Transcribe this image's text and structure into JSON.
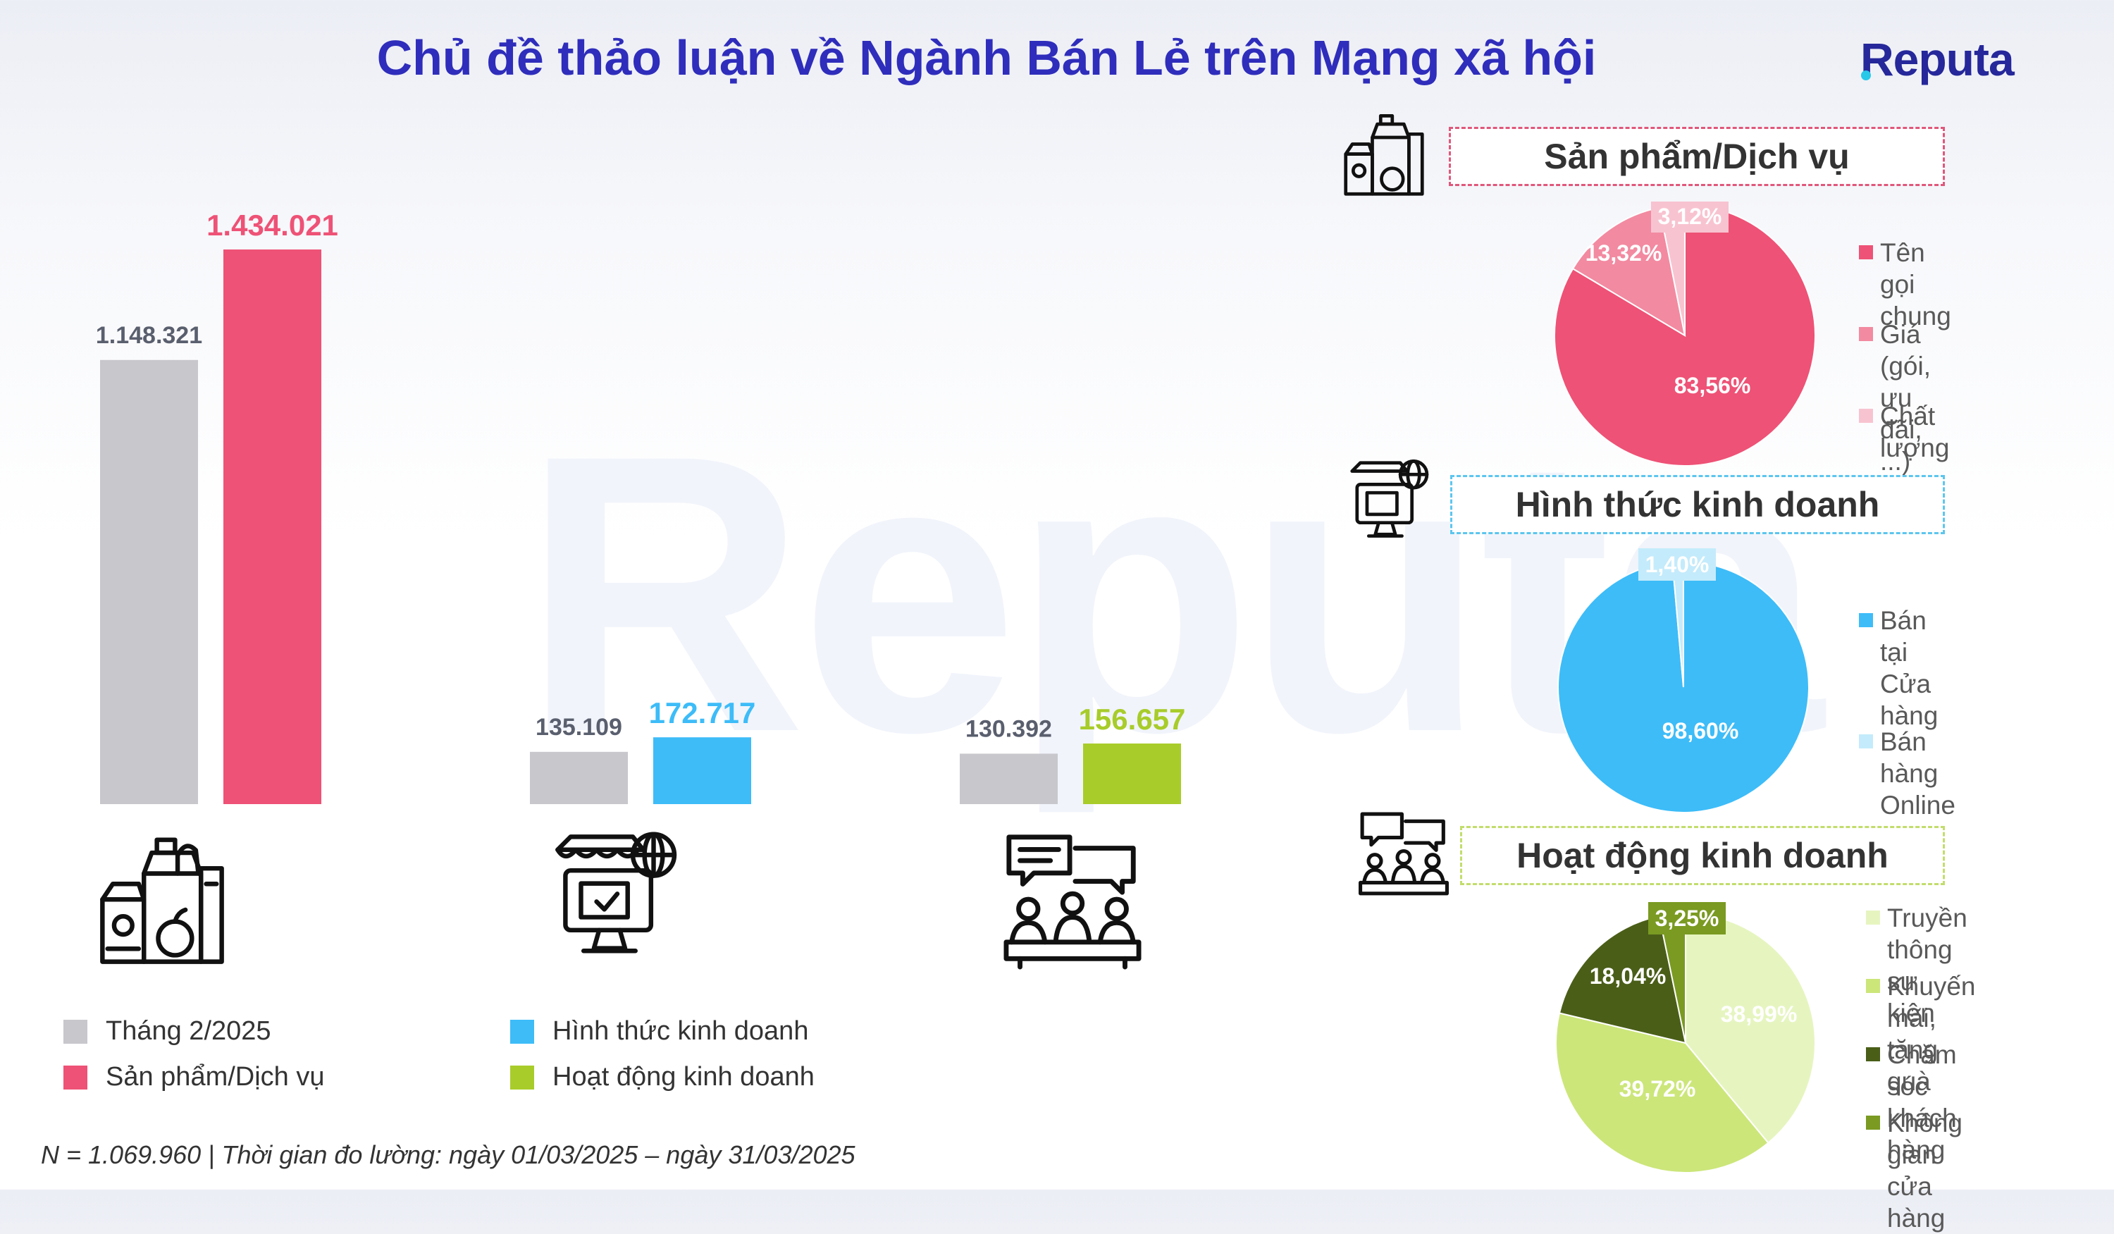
{
  "header": {
    "title": "Chủ đề thảo luận về Ngành Bán Lẻ trên Mạng xã hội",
    "brand": "Reputa",
    "watermark": "Reputa"
  },
  "footnote": "N = 1.069.960 | Thời gian đo lường: ngày 01/03/2025 – ngày 31/03/2025",
  "legend": [
    {
      "label": "Tháng 2/2025",
      "color": "#c7c7cc"
    },
    {
      "label": "Sản phẩm/Dịch vụ",
      "color": "#ee5276"
    },
    {
      "label": "Hình thức kinh doanh",
      "color": "#3dbcf8"
    },
    {
      "label": "Hoạt động kinh doanh",
      "color": "#a8cc2a"
    }
  ],
  "chart_data": [
    {
      "type": "bar",
      "categories": [
        "Sản phẩm/Dịch vụ",
        "Hình thức kinh doanh",
        "Hoạt động kinh doanh"
      ],
      "series": [
        {
          "name": "Tháng 2/2025",
          "values": [
            1148321,
            135109,
            130392
          ],
          "labels": [
            "1.148.321",
            "135.109",
            "130.392"
          ],
          "color": "#c7c7cc"
        },
        {
          "values": [
            1434021,
            172717,
            156657
          ],
          "labels": [
            "1.434.021",
            "172.717",
            "156.657"
          ],
          "colors": [
            "#ee5276",
            "#3dbcf8",
            "#a8cc2a"
          ]
        }
      ],
      "category_icons": [
        "grocery-icon",
        "online-store-icon",
        "meeting-icon"
      ],
      "ylim": [
        0,
        1434021
      ],
      "grid": false
    },
    {
      "type": "pie",
      "title": "Sản phẩm/Dịch vụ",
      "icon": "grocery-icon",
      "border_color": "#e0577b",
      "slices": [
        {
          "label": "Tên gọi chung",
          "value": 83.56,
          "value_label": "83,56%",
          "color": "#ee5276"
        },
        {
          "label": "Giá (gói, ưu đãi, ...)",
          "value": 13.32,
          "value_label": "13,32%",
          "color": "#f28aa1"
        },
        {
          "label": "Chất lượng",
          "value": 3.12,
          "value_label": "3,12%",
          "color": "#f8c3d0"
        }
      ]
    },
    {
      "type": "pie",
      "title": "Hình thức kinh doanh",
      "icon": "online-store-icon",
      "border_color": "#5cc6ee",
      "slices": [
        {
          "label": "Bán tại Cửa hàng",
          "value": 98.6,
          "value_label": "98,60%",
          "color": "#3dbcf8"
        },
        {
          "label": "Bán hàng Online",
          "value": 1.4,
          "value_label": "1,40%",
          "color": "#c4ebfb"
        }
      ]
    },
    {
      "type": "pie",
      "title": "Hoạt động kinh doanh",
      "icon": "meeting-icon",
      "border_color": "#c2dd6c",
      "slices": [
        {
          "label": "Truyền thông sự kiện",
          "lines": [
            "Truyền thông",
            "sự kiện"
          ],
          "value": 38.99,
          "value_label": "38,99%",
          "color": "#e6f5c0"
        },
        {
          "label": "Khuyến mãi, tặng quà",
          "lines": [
            "Khuyến mãi,",
            "tặng quà"
          ],
          "value": 39.72,
          "value_label": "39,72%",
          "color": "#cce67a"
        },
        {
          "label": "Chăm sóc khách hàng",
          "lines": [
            "Chăm sóc",
            "khách hàng"
          ],
          "value": 18.04,
          "value_label": "18,04%",
          "color": "#4a5e18"
        },
        {
          "label": "Không gian cửa hàng",
          "lines": [
            "Không gian",
            "cửa hàng"
          ],
          "value": 3.25,
          "value_label": "3,25%",
          "color": "#7a9a22"
        }
      ]
    }
  ]
}
